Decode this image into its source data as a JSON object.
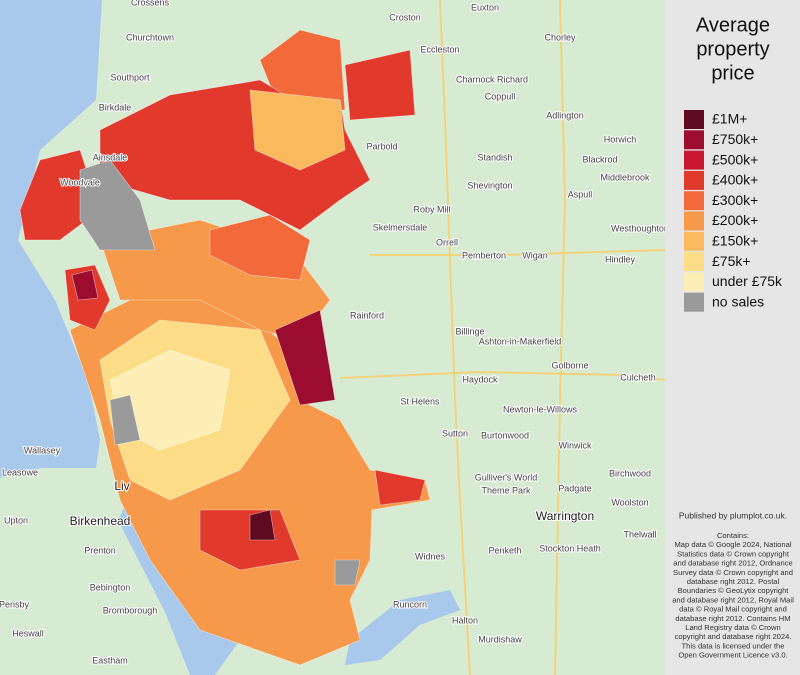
{
  "legend": {
    "title_lines": [
      "Average",
      "property",
      "price"
    ],
    "items": [
      {
        "label": "£1M+",
        "color": "#5e0b1f"
      },
      {
        "label": "£750k+",
        "color": "#9c0c2e"
      },
      {
        "label": "£500k+",
        "color": "#c8162f"
      },
      {
        "label": "£400k+",
        "color": "#e13a2c"
      },
      {
        "label": "£300k+",
        "color": "#f2693a"
      },
      {
        "label": "£200k+",
        "color": "#f6994a"
      },
      {
        "label": "£150k+",
        "color": "#f9b95c"
      },
      {
        "label": "£75k+",
        "color": "#fcdc86"
      },
      {
        "label": "under £75k",
        "color": "#fdeeb6"
      },
      {
        "label": "no sales",
        "color": "#9a9a9a"
      }
    ]
  },
  "places": [
    "Southport",
    "Churchtown",
    "Crossens",
    "Birkdale",
    "Ainsdale",
    "Woodvale",
    "Croston",
    "Eccleston",
    "Euxton",
    "Chorley",
    "Charnock Richard",
    "Coppull",
    "Adlington",
    "Horwich",
    "Blackrod",
    "Middlebrook",
    "Standish",
    "Shevington",
    "Parbold",
    "Skelmersdale",
    "Roby Mill",
    "Orrell",
    "Pemberton",
    "Wigan",
    "Aspull",
    "Westhoughton",
    "Hindley",
    "Rainford",
    "Billinge",
    "Ashton-in-Makerfield",
    "Golborne",
    "Haydock",
    "St Helens",
    "Newton-le-Willows",
    "Culcheth",
    "Sutton",
    "Burtonwood",
    "Winwick",
    "Birchwood",
    "Wallasey",
    "Leasowe",
    "Birkenhead",
    "Upton",
    "Prenton",
    "Bebington",
    "Bromborough",
    "Heswall",
    "Eastham",
    "Pensby",
    "Widnes",
    "Runcorn",
    "Halton",
    "Murdishaw",
    "Warrington",
    "Penketh",
    "Padgate",
    "Woolston",
    "Stockton Heath",
    "Thelwall",
    "Liv",
    "Gulliver's World",
    "Theme Park"
  ],
  "attribution": {
    "published": "Published by plumplot.co.uk.",
    "lines": [
      "Contains:",
      "Map data © Google 2024, National",
      "Statistics data © Crown copyright",
      "and database right 2012, Ordnance",
      "Survey data © Crown copyright and",
      "database right 2012. Postal",
      "Boundaries © GeoLytix copyright",
      "and database right 2012, Royal Mail",
      "data © Royal Mail copyright and",
      "database right 2012. Contains HM",
      "Land Registry data © Crown",
      "copyright and database right 2024.",
      "This data is licensed under the",
      "Open Government Licence v3.0."
    ]
  }
}
